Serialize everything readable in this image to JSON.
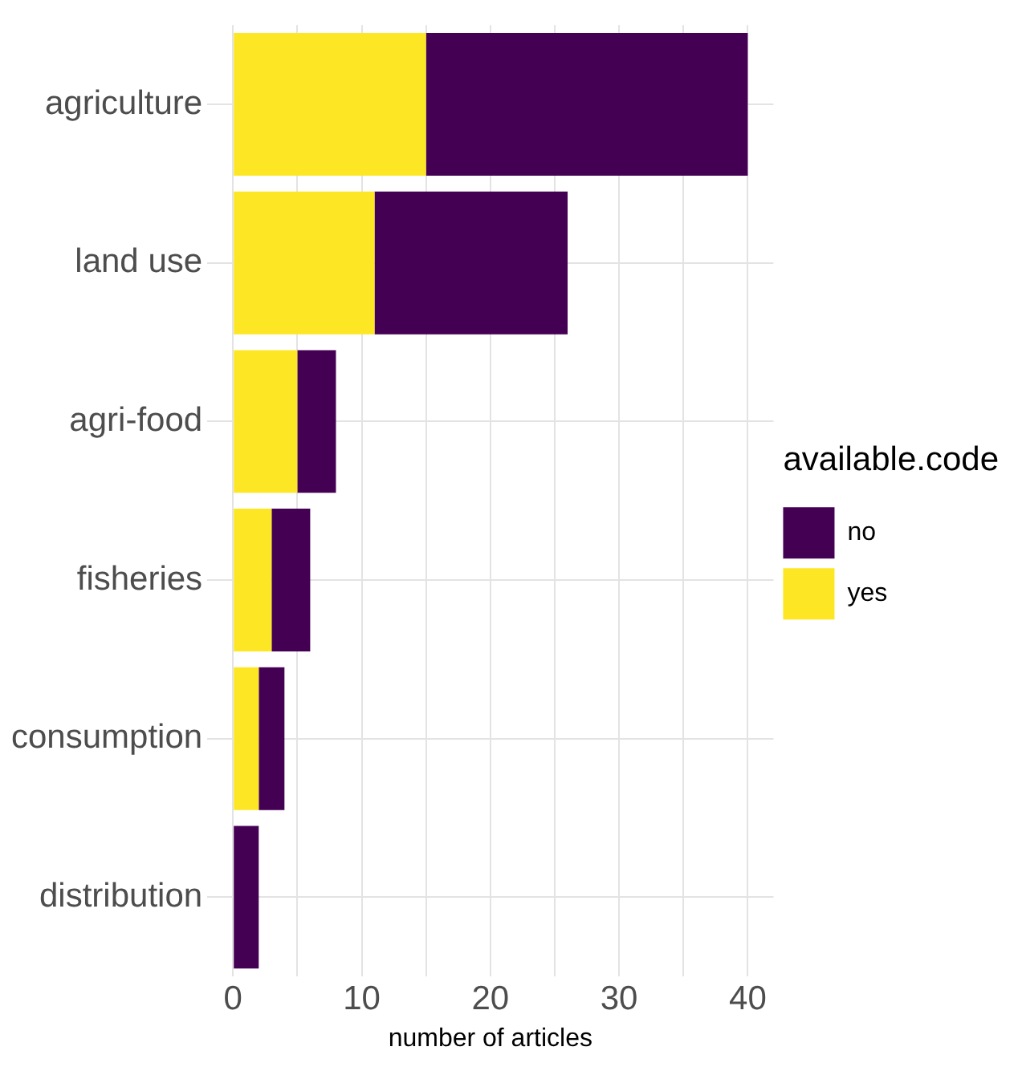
{
  "chart_data": {
    "type": "bar",
    "orientation": "horizontal",
    "stacked": true,
    "categories": [
      "agriculture",
      "land use",
      "agri-food",
      "fisheries",
      "consumption",
      "distribution"
    ],
    "series": [
      {
        "name": "yes",
        "color": "#fde725",
        "values": [
          15,
          11,
          5,
          3,
          2,
          0
        ]
      },
      {
        "name": "no",
        "color": "#440154",
        "values": [
          25,
          15,
          3,
          3,
          2,
          2
        ]
      }
    ],
    "xlabel": "number of articles",
    "legend_title": "available.code",
    "legend": "right",
    "xlim": [
      -2,
      42
    ],
    "xticks": [
      0,
      {
        "value": 5,
        "label": null
      },
      10,
      {
        "value": 15,
        "label": null
      },
      20,
      {
        "value": 25,
        "label": null
      },
      30,
      {
        "value": 35,
        "label": null
      },
      40
    ],
    "grid": true
  }
}
